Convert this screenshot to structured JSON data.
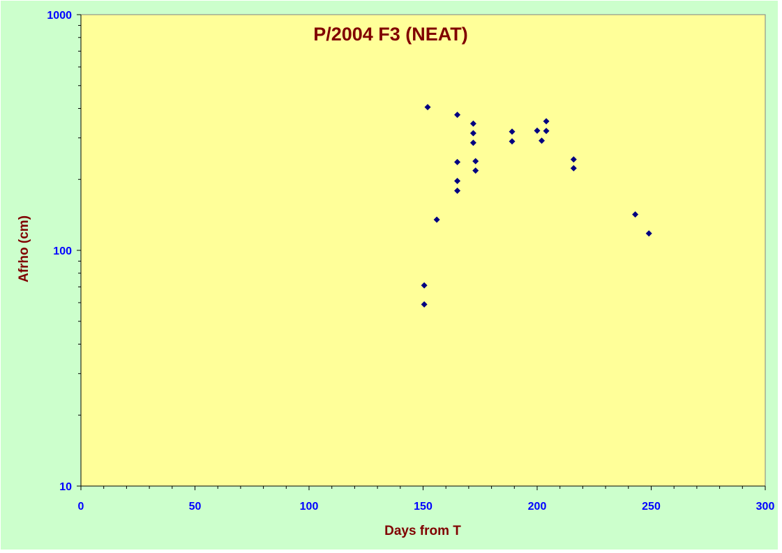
{
  "chart_data": {
    "type": "scatter",
    "title": "P/2004 F3 (NEAT)",
    "xlabel": "Days from T",
    "ylabel": "Afrho (cm)",
    "xlim": [
      0,
      300
    ],
    "ylim": [
      10,
      1000
    ],
    "yscale": "log",
    "x_ticks": [
      0,
      50,
      100,
      150,
      200,
      250,
      300
    ],
    "x_tick_labels": [
      "0",
      "50",
      "100",
      "150",
      "200",
      "250",
      "300"
    ],
    "y_ticks": [
      10,
      100,
      1000
    ],
    "y_tick_labels": [
      "10",
      "100",
      "1000"
    ],
    "grid": false,
    "legend": "none",
    "series": [
      {
        "marker": "diamond",
        "color": "#000080",
        "points": [
          {
            "x": 150.5,
            "y": 71
          },
          {
            "x": 150.5,
            "y": 59
          },
          {
            "x": 152,
            "y": 405
          },
          {
            "x": 156,
            "y": 135
          },
          {
            "x": 165,
            "y": 376
          },
          {
            "x": 165,
            "y": 237
          },
          {
            "x": 165,
            "y": 197
          },
          {
            "x": 165,
            "y": 179
          },
          {
            "x": 172,
            "y": 345
          },
          {
            "x": 172,
            "y": 314
          },
          {
            "x": 172,
            "y": 286
          },
          {
            "x": 173,
            "y": 239
          },
          {
            "x": 173,
            "y": 218
          },
          {
            "x": 189,
            "y": 319
          },
          {
            "x": 189,
            "y": 290
          },
          {
            "x": 200,
            "y": 322
          },
          {
            "x": 202,
            "y": 292
          },
          {
            "x": 204,
            "y": 353
          },
          {
            "x": 204,
            "y": 321
          },
          {
            "x": 216,
            "y": 243
          },
          {
            "x": 216,
            "y": 223
          },
          {
            "x": 243,
            "y": 142
          },
          {
            "x": 249,
            "y": 118
          }
        ]
      }
    ]
  },
  "colors": {
    "outer_background": "#ccffcc",
    "plot_background": "#ffff99",
    "axis_line": "#000000",
    "tick_label": "#0000ff",
    "title_text": "#800000",
    "marker": "#000080"
  }
}
